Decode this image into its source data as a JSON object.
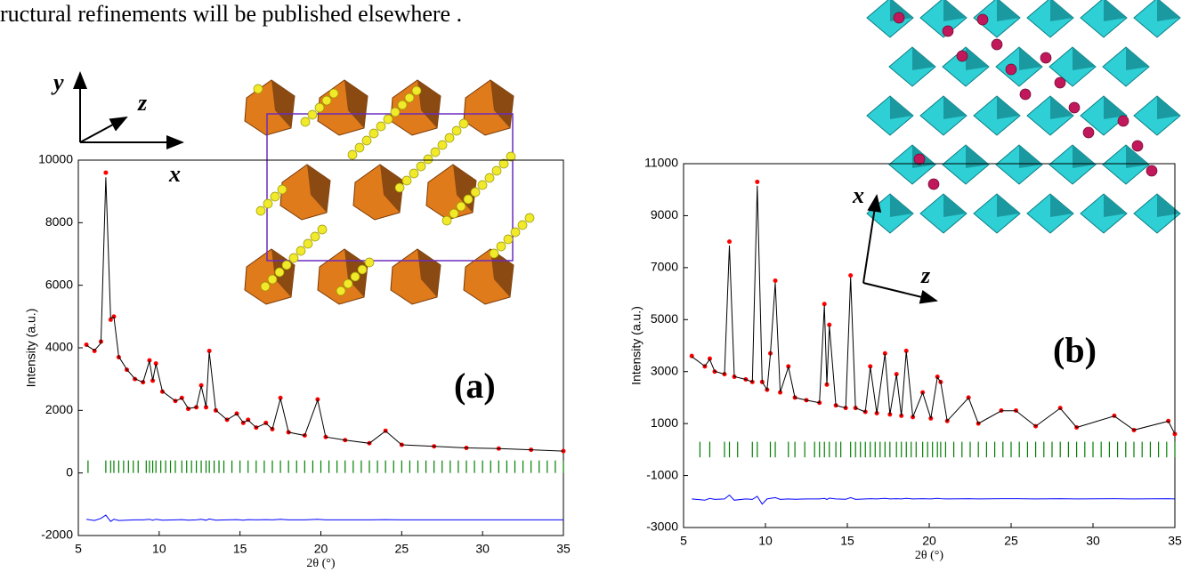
{
  "page_text": "ructural refinements will be published elsewhere .",
  "chart_data": [
    {
      "type": "line",
      "ylabel": "Intensity (a.u.)",
      "xlabel": "2θ (°)",
      "annotations": [
        "y",
        "z",
        "x",
        "(a)"
      ],
      "xlim": [
        5,
        35
      ],
      "xticks": [
        5,
        10,
        15,
        20,
        25,
        30,
        35
      ],
      "ylim": [
        -2000,
        10000
      ],
      "yticks": [
        -2000,
        0,
        2000,
        4000,
        6000,
        8000,
        10000
      ],
      "x": [
        5.5,
        6.0,
        6.4,
        6.7,
        7.0,
        7.2,
        7.5,
        8.0,
        8.5,
        9.0,
        9.4,
        9.6,
        9.8,
        10.2,
        11.0,
        11.4,
        11.8,
        12.3,
        12.6,
        12.9,
        13.1,
        13.5,
        14.2,
        14.8,
        15.2,
        15.5,
        16.0,
        16.6,
        17.0,
        17.5,
        18.0,
        19.0,
        19.8,
        20.3,
        21.5,
        23.0,
        24.0,
        25.0,
        27,
        29,
        31,
        33,
        35
      ],
      "series": [
        {
          "style": "points",
          "color": "#ff0000",
          "values": [
            4100,
            3900,
            4200,
            9600,
            4900,
            5000,
            3700,
            3300,
            3000,
            2900,
            3600,
            2950,
            3500,
            2600,
            2300,
            2400,
            2050,
            2100,
            2800,
            2100,
            3900,
            2000,
            1700,
            1900,
            1600,
            1700,
            1450,
            1600,
            1400,
            2400,
            1300,
            1200,
            2350,
            1150,
            1050,
            950,
            1350,
            900,
            850,
            800,
            780,
            740,
            700
          ]
        },
        {
          "style": "line",
          "color": "#000000",
          "values": [
            4080,
            3920,
            4150,
            9450,
            4950,
            4980,
            3720,
            3310,
            3010,
            2900,
            3580,
            2960,
            3480,
            2610,
            2300,
            2390,
            2060,
            2100,
            2780,
            2110,
            3870,
            2010,
            1700,
            1890,
            1610,
            1690,
            1450,
            1590,
            1400,
            2380,
            1300,
            1200,
            2330,
            1150,
            1050,
            950,
            1340,
            900,
            850,
            800,
            780,
            740,
            700
          ]
        },
        {
          "style": "line",
          "color": "#0000ff",
          "values": [
            -1480,
            -1520,
            -1450,
            -1350,
            -1550,
            -1480,
            -1520,
            -1510,
            -1500,
            -1500,
            -1480,
            -1510,
            -1480,
            -1510,
            -1500,
            -1490,
            -1510,
            -1500,
            -1480,
            -1510,
            -1470,
            -1510,
            -1500,
            -1490,
            -1510,
            -1490,
            -1500,
            -1490,
            -1500,
            -1480,
            -1500,
            -1500,
            -1480,
            -1500,
            -1500,
            -1500,
            -1490,
            -1500,
            -1500,
            -1500,
            -1500,
            -1500,
            -1500
          ]
        }
      ],
      "reflection_color": "#008000",
      "reflection_band": [
        0,
        400
      ],
      "reflections": [
        5.6,
        6.7,
        7.0,
        7.2,
        7.5,
        7.8,
        8.1,
        8.4,
        8.7,
        9.2,
        9.4,
        9.6,
        9.8,
        10.1,
        10.4,
        10.7,
        11.0,
        11.4,
        11.7,
        12.0,
        12.3,
        12.6,
        12.9,
        13.1,
        13.4,
        13.7,
        14.0,
        14.5,
        15,
        15.5,
        16,
        16.5,
        17,
        17.5,
        18,
        18.5,
        19,
        19.5,
        20,
        20.5,
        21,
        21.5,
        22,
        22.5,
        23,
        23.5,
        24,
        24.5,
        25,
        25.5,
        26,
        26.5,
        27,
        27.5,
        28,
        28.5,
        29,
        29.5,
        30,
        30.5,
        31,
        31.5,
        32,
        32.5,
        33,
        33.5,
        34,
        34.5,
        35
      ]
    },
    {
      "type": "line",
      "ylabel": "Intensity (a.u.)",
      "xlabel": "2θ (°)",
      "annotations": [
        "x",
        "z",
        "(b)"
      ],
      "xlim": [
        5,
        35
      ],
      "xticks": [
        5,
        10,
        15,
        20,
        25,
        30,
        35
      ],
      "ylim": [
        -3000,
        11000
      ],
      "yticks": [
        -3000,
        -1000,
        1000,
        3000,
        5000,
        7000,
        9000,
        11000
      ],
      "x": [
        5.5,
        6.3,
        6.6,
        6.9,
        7.5,
        7.8,
        8.1,
        8.8,
        9.2,
        9.5,
        9.8,
        10.1,
        10.3,
        10.6,
        10.9,
        11.4,
        11.8,
        12.5,
        13.3,
        13.6,
        13.75,
        13.9,
        14.3,
        14.9,
        15.2,
        15.5,
        16.1,
        16.4,
        16.8,
        17.3,
        17.6,
        18.0,
        18.3,
        18.6,
        19.0,
        19.6,
        20.1,
        20.5,
        20.7,
        21.1,
        22.4,
        23,
        24.4,
        25.3,
        26.5,
        28.0,
        29,
        31.3,
        32.5,
        34.6,
        35
      ],
      "series": [
        {
          "style": "points",
          "color": "#ff0000",
          "values": [
            3600,
            3200,
            3500,
            3000,
            2900,
            8000,
            2800,
            2700,
            2600,
            10300,
            2600,
            2300,
            3700,
            6500,
            2200,
            3200,
            2000,
            1900,
            1800,
            5600,
            2500,
            4800,
            1700,
            1600,
            6700,
            1600,
            1450,
            3200,
            1400,
            3700,
            1350,
            2900,
            1300,
            3800,
            1250,
            2200,
            1200,
            2800,
            2600,
            1100,
            2000,
            1000,
            1500,
            1500,
            900,
            1600,
            850,
            1300,
            750,
            1100,
            600
          ]
        },
        {
          "style": "line",
          "color": "#000000",
          "values": [
            3580,
            3210,
            3470,
            3010,
            2900,
            7850,
            2810,
            2700,
            2600,
            10150,
            2610,
            2300,
            3650,
            6420,
            2200,
            3180,
            2000,
            1900,
            1800,
            5550,
            2500,
            4760,
            1700,
            1600,
            6620,
            1600,
            1450,
            3170,
            1400,
            3680,
            1350,
            2880,
            1300,
            3770,
            1250,
            2190,
            1200,
            2780,
            2590,
            1100,
            1990,
            1000,
            1490,
            1490,
            900,
            1590,
            850,
            1290,
            750,
            1090,
            600
          ]
        },
        {
          "style": "line",
          "color": "#0000ff",
          "values": [
            -1900,
            -1950,
            -1880,
            -1920,
            -1900,
            -1750,
            -1950,
            -1900,
            -1920,
            -1800,
            -2100,
            -1900,
            -1880,
            -1850,
            -1920,
            -1900,
            -1910,
            -1900,
            -1900,
            -1880,
            -1920,
            -1870,
            -1900,
            -1910,
            -1850,
            -1920,
            -1900,
            -1890,
            -1900,
            -1880,
            -1900,
            -1890,
            -1900,
            -1880,
            -1900,
            -1890,
            -1900,
            -1880,
            -1890,
            -1900,
            -1890,
            -1900,
            -1890,
            -1890,
            -1900,
            -1890,
            -1900,
            -1890,
            -1900,
            -1890,
            -1900
          ]
        }
      ],
      "reflection_color": "#008000",
      "reflection_band": [
        -300,
        300
      ],
      "reflections": [
        6.0,
        6.6,
        7.5,
        7.8,
        8.3,
        9.2,
        9.5,
        10.3,
        10.6,
        11.4,
        11.8,
        12.4,
        13.0,
        13.3,
        13.6,
        13.9,
        14.3,
        14.6,
        15.2,
        15.5,
        15.8,
        16.1,
        16.4,
        16.7,
        17.0,
        17.3,
        17.6,
        18.0,
        18.3,
        18.6,
        18.9,
        19.2,
        19.6,
        19.9,
        20.2,
        20.5,
        20.7,
        21.0,
        21.5,
        22,
        22.5,
        23,
        23.5,
        24,
        24.5,
        25,
        25.5,
        26,
        26.5,
        27,
        27.5,
        28,
        28.5,
        29,
        29.5,
        30,
        30.5,
        31,
        31.5,
        32,
        32.5,
        33,
        33.5,
        34,
        34.5,
        35
      ]
    }
  ]
}
